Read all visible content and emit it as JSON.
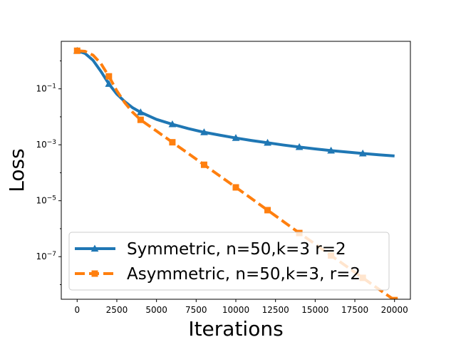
{
  "chart_data": {
    "type": "line",
    "title": "",
    "xlabel": "Iterations",
    "ylabel": "Loss",
    "xlim": [
      -1000,
      21000
    ],
    "ylim": [
      3e-09,
      5
    ],
    "yscale": "log",
    "grid": false,
    "legend_position": "lower-left",
    "x_ticks": [
      0,
      2500,
      5000,
      7500,
      10000,
      12500,
      15000,
      17500,
      20000
    ],
    "x_tick_labels": [
      "0",
      "2500",
      "5000",
      "7500",
      "10000",
      "12500",
      "15000",
      "17500",
      "20000"
    ],
    "y_ticks": [
      1e-07,
      1e-05,
      0.001,
      0.1
    ],
    "y_tick_labels": [
      {
        "base": "10",
        "exp": "−7"
      },
      {
        "base": "10",
        "exp": "−5"
      },
      {
        "base": "10",
        "exp": "−3"
      },
      {
        "base": "10",
        "exp": "−1"
      }
    ],
    "series": [
      {
        "name": "Symmetric, n=50,k=3 r=2",
        "color": "#1f77b4",
        "line_style": "solid",
        "marker": "triangle",
        "x": [
          0,
          500,
          1000,
          1500,
          2000,
          2500,
          3000,
          3500,
          4000,
          5000,
          6000,
          7000,
          8000,
          9000,
          10000,
          11000,
          12000,
          13000,
          14000,
          15000,
          16000,
          17000,
          18000,
          19000,
          20000
        ],
        "y": [
          2.3,
          1.85,
          1.05,
          0.42,
          0.15,
          0.065,
          0.035,
          0.021,
          0.0145,
          0.0081,
          0.0054,
          0.0038,
          0.0028,
          0.0022,
          0.00175,
          0.00142,
          0.00118,
          0.00098,
          0.00083,
          0.00071,
          0.00062,
          0.00055,
          0.00049,
          0.00044,
          0.0004
        ],
        "marker_x": [
          0,
          2000,
          4000,
          6000,
          8000,
          10000,
          12000,
          14000,
          16000,
          18000
        ],
        "marker_y": [
          2.3,
          0.15,
          0.0145,
          0.0054,
          0.0028,
          0.00175,
          0.00118,
          0.00083,
          0.00062,
          0.00049
        ]
      },
      {
        "name": "Asymmetric, n=50,k=3, r=2",
        "color": "#ff7f0e",
        "line_style": "dashed",
        "marker": "square",
        "x": [
          0,
          500,
          1000,
          1500,
          2000,
          2500,
          3000,
          3500,
          4000,
          5000,
          6000,
          7000,
          8000,
          9000,
          10000,
          11000,
          12000,
          13000,
          14000,
          15000,
          16000,
          17000,
          18000,
          19000,
          20000
        ],
        "y": [
          2.3,
          2.2,
          1.6,
          0.8,
          0.28,
          0.085,
          0.032,
          0.0145,
          0.0078,
          0.0031,
          0.00123,
          0.00049,
          0.000193,
          7.6e-05,
          3e-05,
          1.18e-05,
          4.6e-06,
          1.8e-06,
          7e-07,
          2.8e-07,
          1.1e-07,
          4.4e-08,
          1.75e-08,
          6.9e-09,
          2.8e-09
        ],
        "marker_x": [
          0,
          2000,
          4000,
          6000,
          8000,
          10000,
          12000,
          14000,
          16000,
          18000,
          20000
        ],
        "marker_y": [
          2.3,
          0.28,
          0.0078,
          0.00123,
          0.000193,
          3e-05,
          4.6e-06,
          7e-07,
          1.1e-07,
          1.75e-08,
          2.8e-09
        ]
      }
    ]
  }
}
